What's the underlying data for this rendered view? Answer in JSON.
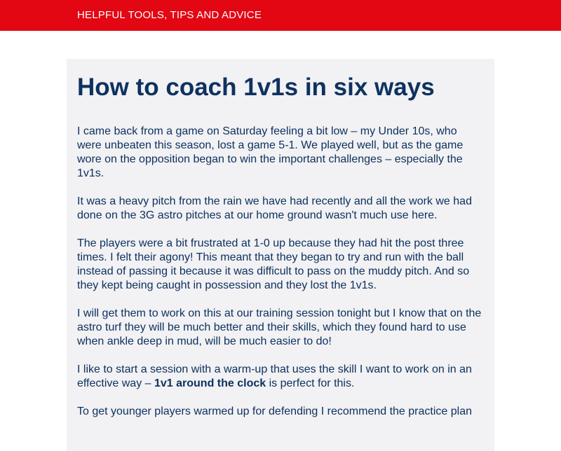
{
  "header": {
    "title": "HELPFUL TOOLS, TIPS AND ADVICE",
    "background_color": "#e30613",
    "text_color": "#ffffff"
  },
  "article": {
    "title": "How to coach 1v1s in six ways",
    "text_color": "#0d3260",
    "panel_color": "#f2f1f3",
    "paragraphs": {
      "p1": "I came back from a game on Saturday feeling a bit low – my Under 10s, who were unbeaten this season, lost a game 5-1. We played well, but as the game wore on the opposition began to win the important challenges – especially the 1v1s.",
      "p2": "It was a heavy pitch from the rain we have had recently and all the work we had done on the 3G astro pitches at our home ground wasn't much use here.",
      "p3": "The players were a bit frustrated at 1-0 up because they had hit the post three times. I felt their agony! This meant that they began to try and run with the ball instead of passing it because it was difficult to pass on the muddy pitch. And so they kept being caught in possession and they lost the 1v1s.",
      "p4": "I will get them to work on this at our training session tonight but I know that on the astro turf they will be much better and their skills, which they found hard to use when ankle deep in mud, will be much easier to do!",
      "p5_before": "I like to start a session with a warm-up that uses the skill I want to work on in an effective way – ",
      "p5_link": "1v1 around the clock",
      "p5_after": " is perfect for this.",
      "p6": "To get younger players warmed up for defending I recommend the practice plan"
    }
  }
}
